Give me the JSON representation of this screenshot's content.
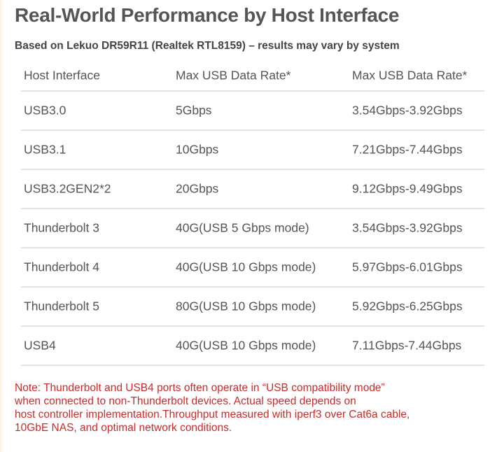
{
  "title": "Real-World Performance by Host Interface",
  "subtitle": "Based on Lekuo DR59R11 (Realtek RTL8159) – results may vary by system",
  "table": {
    "headers": [
      "Host Interface",
      "Max USB Data Rate*",
      "Max USB Data Rate*"
    ],
    "rows": [
      [
        "USB3.0",
        "5Gbps",
        "3.54Gbps-3.92Gbps"
      ],
      [
        "USB3.1",
        "10Gbps",
        "7.21Gbps-7.44Gbps"
      ],
      [
        "USB3.2GEN2*2",
        "20Gbps",
        "9.12Gbps-9.49Gbps"
      ],
      [
        "Thunderbolt 3",
        "40G(USB 5 Gbps mode)",
        "3.54Gbps-3.92Gbps"
      ],
      [
        "Thunderbolt 4",
        "40G(USB 10 Gbps mode)",
        "5.97Gbps-6.01Gbps"
      ],
      [
        "Thunderbolt 5",
        "80G(USB 10 Gbps mode)",
        "5.92Gbps-6.25Gbps"
      ],
      [
        "USB4",
        "40G(USB 10 Gbps mode)",
        "7.11Gbps-7.44Gbps"
      ]
    ]
  },
  "note": {
    "lines": [
      "Note: Thunderbolt and USB4 ports often operate in  “USB compatibility mode”",
      "when connected to non-Thunderbolt devices. Actual speed depends on",
      "host controller implementation.Throughput measured with iperf3 over Cat6a cable,",
      "10GbE NAS, and optimal network conditions."
    ]
  },
  "colors": {
    "text": "#555555",
    "note": "#cc2a2a",
    "divider": "#e3e3e3"
  }
}
